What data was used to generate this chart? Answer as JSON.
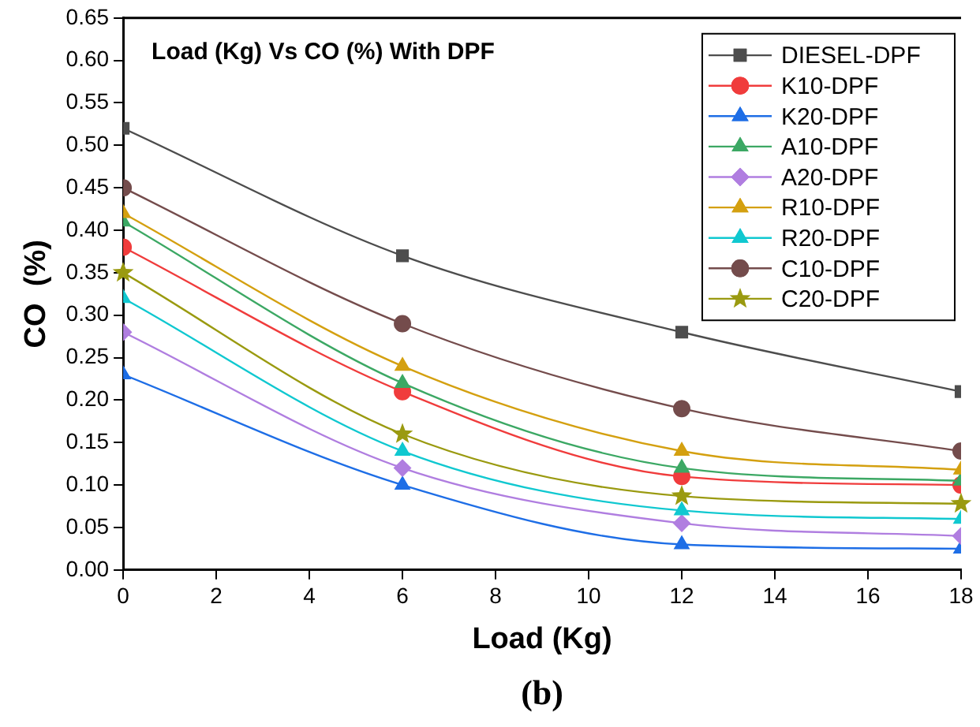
{
  "chart_data": {
    "type": "line",
    "title": "Load (Kg) Vs CO (%) With DPF",
    "xlabel": "Load (Kg)",
    "ylabel": "CO  (%)",
    "annotations": [
      "(b)"
    ],
    "x": [
      0,
      6,
      12,
      18
    ],
    "xlim": [
      0,
      18
    ],
    "xticks": [
      0,
      2,
      4,
      6,
      8,
      10,
      12,
      14,
      16,
      18
    ],
    "ylim": [
      0,
      0.65
    ],
    "yticks": [
      {
        "value": 0,
        "label": "0.00"
      },
      {
        "value": 0.05,
        "label": "0.05"
      },
      {
        "value": 0.1,
        "label": "0.10"
      },
      {
        "value": 0.15,
        "label": "0.15"
      },
      {
        "value": 0.2,
        "label": "0.20"
      },
      {
        "value": 0.25,
        "label": "0.25"
      },
      {
        "value": 0.3,
        "label": "0.30"
      },
      {
        "value": 0.35,
        "label": "0.35"
      },
      {
        "value": 0.4,
        "label": "0.40"
      },
      {
        "value": 0.45,
        "label": "0.45"
      },
      {
        "value": 0.5,
        "label": "0.50"
      },
      {
        "value": 0.55,
        "label": "0.55"
      },
      {
        "value": 0.6,
        "label": "0.60"
      },
      {
        "value": 0.65,
        "label": "0.65"
      }
    ],
    "grid": false,
    "legend": "top right",
    "series": [
      {
        "name": "DIESEL-DPF",
        "color": "#4d4d4d",
        "marker": "square",
        "values": [
          0.52,
          0.37,
          0.28,
          0.21
        ]
      },
      {
        "name": "K10-DPF",
        "color": "#f03c3c",
        "marker": "circle",
        "values": [
          0.38,
          0.21,
          0.11,
          0.1
        ]
      },
      {
        "name": "K20-DPF",
        "color": "#1e6ee6",
        "marker": "triangle",
        "values": [
          0.23,
          0.1,
          0.03,
          0.025
        ]
      },
      {
        "name": "A10-DPF",
        "color": "#3ca864",
        "marker": "triangle",
        "values": [
          0.41,
          0.22,
          0.12,
          0.105
        ]
      },
      {
        "name": "A20-DPF",
        "color": "#b07ee0",
        "marker": "diamond",
        "values": [
          0.28,
          0.12,
          0.055,
          0.04
        ]
      },
      {
        "name": "R10-DPF",
        "color": "#d4a010",
        "marker": "triangle",
        "values": [
          0.42,
          0.24,
          0.14,
          0.118
        ]
      },
      {
        "name": "R20-DPF",
        "color": "#10c8d0",
        "marker": "triangle",
        "values": [
          0.32,
          0.14,
          0.07,
          0.06
        ]
      },
      {
        "name": "C10-DPF",
        "color": "#744c4c",
        "marker": "circle",
        "values": [
          0.45,
          0.29,
          0.19,
          0.14
        ]
      },
      {
        "name": "C20-DPF",
        "color": "#9a9a10",
        "marker": "star",
        "values": [
          0.35,
          0.16,
          0.087,
          0.078
        ]
      }
    ]
  }
}
